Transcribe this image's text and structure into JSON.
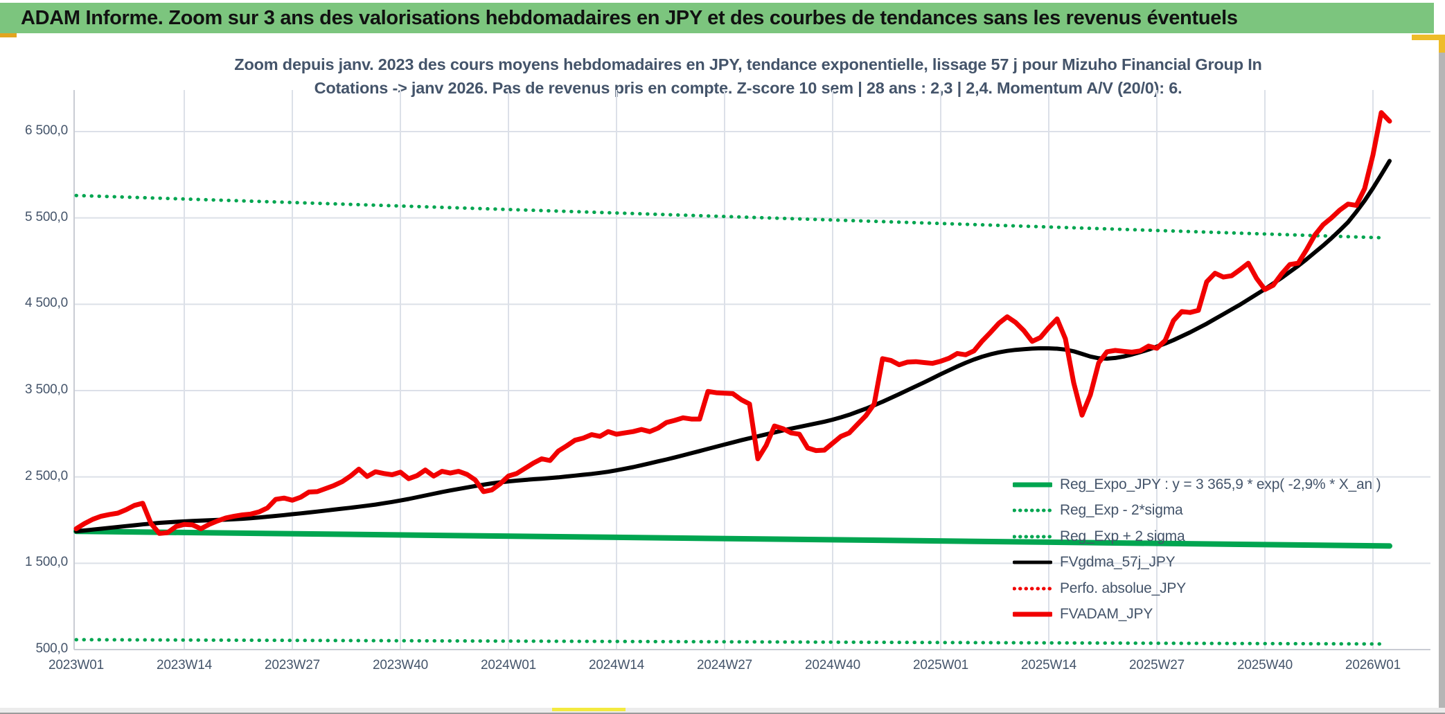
{
  "header": {
    "title": "ADAM Informe. Zoom sur 3 ans des valorisations hebdomadaires en JPY et des courbes de tendances sans les revenus éventuels"
  },
  "chart": {
    "title_line1": "Zoom depuis janv. 2023 des cours moyens hebdomadaires en JPY, tendance exponentielle, lissage 57 j pour Mizuho Financial Group In",
    "title_line2": "Cotations -> janv 2026. Pas de revenus pris en compte. Z-score 10 sem | 28 ans : 2,3 | 2,4. Momentum A/V (20/0): 6.",
    "colors": {
      "header_green": "#7cc57e",
      "series_green": "#00a550",
      "series_red": "#f10000",
      "series_black": "#000000",
      "text_blue": "#44546a",
      "grid": "#dce0e8",
      "gold": "#e2a51f",
      "yellow": "#f3ea3f"
    },
    "legend": [
      {
        "label": "Reg_Expo_JPY : y = 3 365,9 * exp( -2,9% *  X_an )",
        "style": "solid",
        "color": "#00a550",
        "weight": 7
      },
      {
        "label": "Reg_Exp - 2*sigma",
        "style": "dotted",
        "color": "#00a550",
        "weight": 5
      },
      {
        "label": "Reg_Exp + 2 sigma",
        "style": "dotted",
        "color": "#00a550",
        "weight": 5
      },
      {
        "label": "FVgdma_57j_JPY",
        "style": "solid",
        "color": "#000000",
        "weight": 5
      },
      {
        "label": "Perfo. absolue_JPY",
        "style": "dotted",
        "color": "#f10000",
        "weight": 5
      },
      {
        "label": "FVADAM_JPY",
        "style": "solid",
        "color": "#f10000",
        "weight": 7
      }
    ]
  },
  "chart_data": {
    "type": "line",
    "x_unit": "week",
    "weeks_per_tick": 13,
    "x_tick_labels": [
      "2023W01",
      "2023W14",
      "2023W27",
      "2023W40",
      "2024W01",
      "2024W14",
      "2024W27",
      "2024W40",
      "2025W01",
      "2025W14",
      "2025W27",
      "2025W40",
      "2026W01"
    ],
    "y_tick_labels": [
      "6 500,0",
      "5 500,0",
      "4 500,0",
      "3 500,0",
      "2 500,0",
      "1 500,0",
      "500,0"
    ],
    "ylim": [
      500,
      6500
    ],
    "grid": true,
    "legend_position": "inside-bottom-right",
    "series": [
      {
        "name": "Reg_Exp + 2 sigma",
        "color": "#00a550",
        "width": 5,
        "style": "dotted",
        "points": [
          [
            0,
            5760
          ],
          [
            157,
            5270
          ]
        ]
      },
      {
        "name": "Reg_Exp - 2*sigma",
        "color": "#00a550",
        "width": 5,
        "style": "dotted",
        "points": [
          [
            0,
            615
          ],
          [
            157,
            565
          ]
        ]
      },
      {
        "name": "Reg_Expo_JPY",
        "color": "#00a550",
        "width": 8,
        "style": "solid",
        "points": [
          [
            0,
            1870
          ],
          [
            158,
            1700
          ]
        ]
      },
      {
        "name": "FVgdma_57j_JPY",
        "color": "#000000",
        "width": 6,
        "style": "solid",
        "values": [
          1870,
          1880,
          1890,
          1900,
          1910,
          1920,
          1930,
          1940,
          1950,
          1959,
          1968,
          1974,
          1980,
          1985,
          1990,
          1994,
          1998,
          2002,
          2005,
          2010,
          2015,
          2022,
          2030,
          2039,
          2048,
          2058,
          2068,
          2078,
          2088,
          2099,
          2110,
          2121,
          2132,
          2143,
          2155,
          2167,
          2180,
          2195,
          2210,
          2227,
          2245,
          2265,
          2285,
          2305,
          2325,
          2343,
          2360,
          2378,
          2395,
          2410,
          2425,
          2437,
          2448,
          2457,
          2465,
          2473,
          2480,
          2488,
          2495,
          2505,
          2515,
          2525,
          2535,
          2547,
          2560,
          2577,
          2595,
          2614,
          2635,
          2657,
          2680,
          2702,
          2725,
          2750,
          2775,
          2800,
          2825,
          2850,
          2875,
          2900,
          2925,
          2948,
          2970,
          2993,
          3015,
          3038,
          3060,
          3080,
          3100,
          3120,
          3140,
          3163,
          3190,
          3220,
          3255,
          3291,
          3330,
          3371,
          3415,
          3459,
          3505,
          3550,
          3595,
          3642,
          3690,
          3735,
          3780,
          3822,
          3860,
          3893,
          3920,
          3943,
          3960,
          3972,
          3980,
          3986,
          3990,
          3989,
          3985,
          3975,
          3955,
          3925,
          3895,
          3875,
          3870,
          3878,
          3895,
          3918,
          3945,
          3975,
          4010,
          4045,
          4085,
          4130,
          4175,
          4225,
          4275,
          4330,
          4385,
          4440,
          4495,
          4555,
          4615,
          4675,
          4740,
          4805,
          4875,
          4945,
          5020,
          5100,
          5180,
          5265,
          5355,
          5450,
          5570,
          5700,
          5845,
          6000,
          6160
        ]
      },
      {
        "name": "FVADAM_JPY",
        "color": "#f10000",
        "width": 7,
        "style": "solid",
        "values": [
          1900,
          1960,
          2010,
          2045,
          2065,
          2080,
          2120,
          2170,
          2195,
          1960,
          1845,
          1855,
          1925,
          1950,
          1945,
          1900,
          1950,
          1990,
          2025,
          2045,
          2060,
          2070,
          2095,
          2140,
          2240,
          2255,
          2230,
          2265,
          2325,
          2330,
          2365,
          2400,
          2445,
          2510,
          2590,
          2505,
          2560,
          2540,
          2525,
          2555,
          2480,
          2515,
          2580,
          2510,
          2565,
          2545,
          2565,
          2530,
          2465,
          2330,
          2350,
          2420,
          2510,
          2540,
          2600,
          2660,
          2710,
          2690,
          2800,
          2860,
          2925,
          2950,
          2990,
          2970,
          3025,
          2995,
          3010,
          3025,
          3050,
          3025,
          3065,
          3130,
          3155,
          3185,
          3170,
          3170,
          3490,
          3475,
          3470,
          3465,
          3395,
          3345,
          2710,
          2865,
          3090,
          3060,
          3010,
          2995,
          2835,
          2805,
          2810,
          2890,
          2970,
          3010,
          3110,
          3210,
          3345,
          3870,
          3850,
          3800,
          3830,
          3835,
          3825,
          3815,
          3840,
          3875,
          3930,
          3915,
          3960,
          4075,
          4175,
          4280,
          4355,
          4290,
          4195,
          4070,
          4115,
          4230,
          4330,
          4100,
          3590,
          3215,
          3450,
          3820,
          3950,
          3965,
          3955,
          3945,
          3960,
          4015,
          3990,
          4080,
          4310,
          4415,
          4405,
          4430,
          4760,
          4860,
          4815,
          4830,
          4900,
          4975,
          4800,
          4670,
          4720,
          4850,
          4960,
          4975,
          5130,
          5300,
          5420,
          5500,
          5590,
          5660,
          5645,
          5840,
          6230,
          6720,
          6620
        ]
      }
    ]
  }
}
